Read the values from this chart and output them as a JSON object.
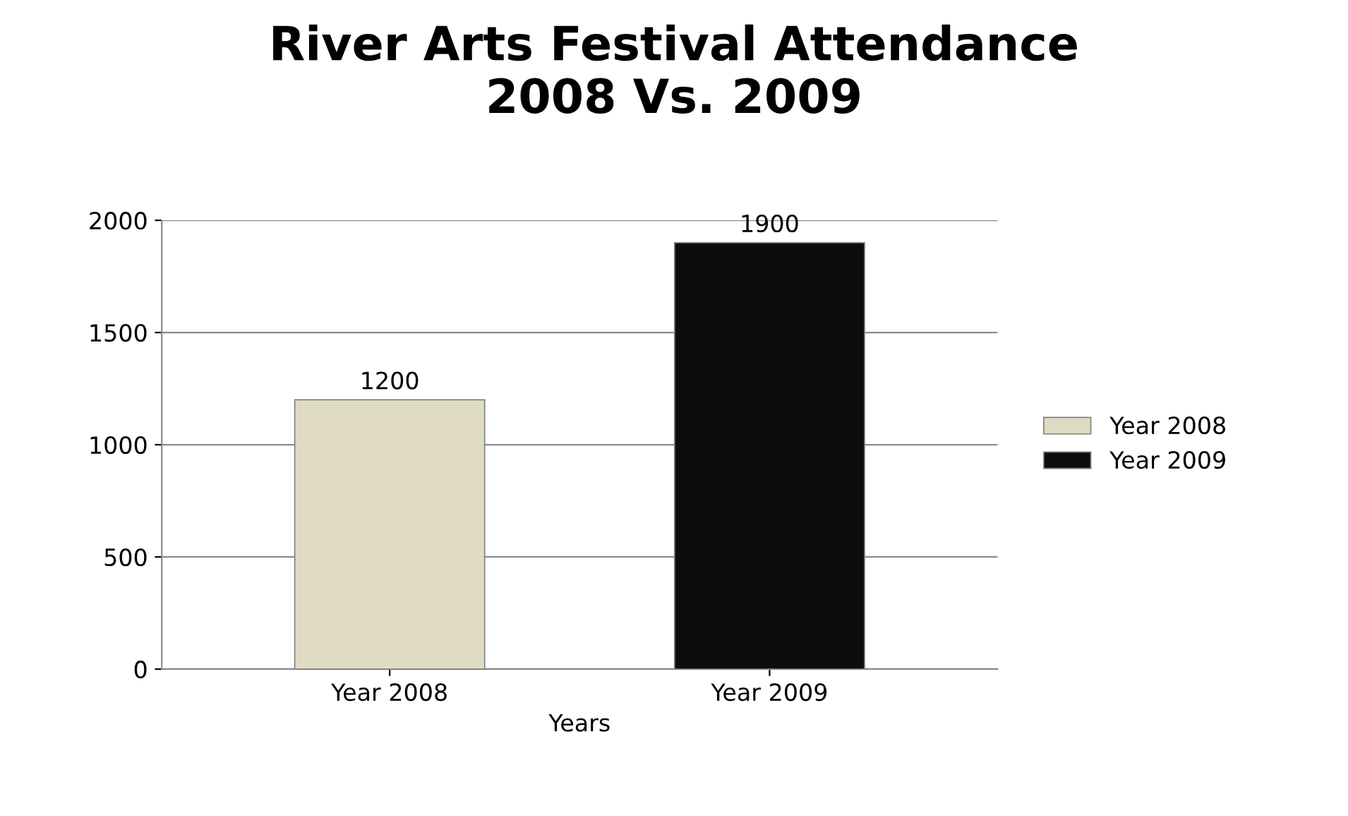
{
  "chart_data": {
    "type": "bar",
    "title": "River Arts Festival Attendance\n2008 Vs. 2009",
    "xlabel": "Years",
    "categories": [
      "Year 2008",
      "Year 2009"
    ],
    "series": [
      {
        "name": "Year 2008",
        "color": "#e0dcc4",
        "values": [
          1200,
          null
        ]
      },
      {
        "name": "Year 2009",
        "color": "#0d0d0d",
        "values": [
          null,
          1900
        ]
      }
    ],
    "ylim": [
      0,
      2000
    ],
    "yticks": [
      0,
      500,
      1000,
      1500,
      2000
    ],
    "grid": "y",
    "legend": "right",
    "data_labels": true
  }
}
